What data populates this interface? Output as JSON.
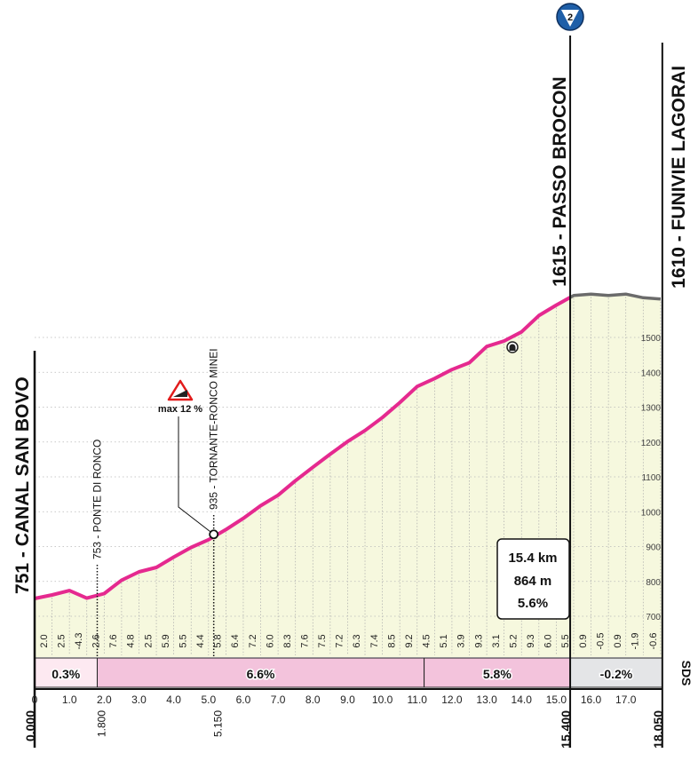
{
  "chart_data": {
    "type": "area",
    "title": "",
    "xlabel": "",
    "ylabel": "",
    "xlim": [
      0,
      18.05
    ],
    "ylim": [
      700,
      1615
    ],
    "grid": true,
    "y_ticks": [
      "700",
      "800",
      "900",
      "1000",
      "1100",
      "1200",
      "1300",
      "1400",
      "1500"
    ],
    "x_ticks": [
      "0",
      "1.0",
      "2.0",
      "3.0",
      "4.0",
      "5.0",
      "6.0",
      "7.0",
      "8.0",
      "9.0",
      "10.0",
      "11.0",
      "12.0",
      "13.0",
      "14.0",
      "15.0",
      "16.0",
      "17.0"
    ],
    "km_markers": [
      "0.000",
      "1.800",
      "5.150",
      "15.400",
      "18.050"
    ],
    "start_elevation": 751,
    "segment_length_km": 0.5,
    "segment_gradients": [
      "2.0",
      "2.5",
      "-4.3",
      "2.6",
      "7.6",
      "4.8",
      "2.5",
      "5.9",
      "5.5",
      "4.4",
      "5.8",
      "6.4",
      "7.2",
      "6.0",
      "8.3",
      "7.6",
      "7.5",
      "7.2",
      "6.3",
      "7.4",
      "8.5",
      "9.2",
      "4.5",
      "5.1",
      "3.9",
      "9.3",
      "3.1",
      "5.2",
      "9.3",
      "6.0",
      "5.5",
      "0.9",
      "-0.5",
      "0.9",
      "-1.9",
      "-0.6"
    ],
    "sector_gradients": [
      {
        "from_km": 0,
        "to_km": 1.8,
        "label": "0.3%"
      },
      {
        "from_km": 1.8,
        "to_km": 11.2,
        "label": "6.6%"
      },
      {
        "from_km": 11.2,
        "to_km": 15.4,
        "label": "5.8%"
      },
      {
        "from_km": 15.4,
        "to_km": 18.05,
        "label": "-0.2%"
      }
    ],
    "locations": [
      {
        "km": 0,
        "elevation": 751,
        "label": "751 - CANAL SAN BOVO",
        "major": true
      },
      {
        "km": 1.8,
        "elevation": 753,
        "label": "753 - PONTE DI RONCO",
        "major": false
      },
      {
        "km": 5.15,
        "elevation": 935,
        "label": "935 - TORNANTE-RONCO MINEI",
        "major": false
      },
      {
        "km": 15.4,
        "elevation": 1615,
        "label": "1615 - PASSO BROCON",
        "major": true
      },
      {
        "km": 18.05,
        "elevation": 1610,
        "label": "1610 - FUNIVIE LAGORAI",
        "major": true
      }
    ],
    "max_gradient_label": "max 12 %",
    "kom_badge": "2",
    "climb_summary": {
      "distance": "15.4 km",
      "gain": "864 m",
      "avg": "5.6%"
    },
    "brand": "SDS"
  },
  "colors": {
    "profile_line": "#e5298f",
    "flat_line": "#6b6b6b",
    "fill": "#f6f8de",
    "sector_climb": "#f3c3dc",
    "sector_easy": "#fde9f1",
    "sector_flat": "#e4e5e7",
    "kom_badge": "#1f5fa8"
  },
  "icons": {
    "max_gradient": "warning-triangle-icon",
    "tunnel": "tunnel-icon",
    "kom": "kom-badge-icon"
  }
}
